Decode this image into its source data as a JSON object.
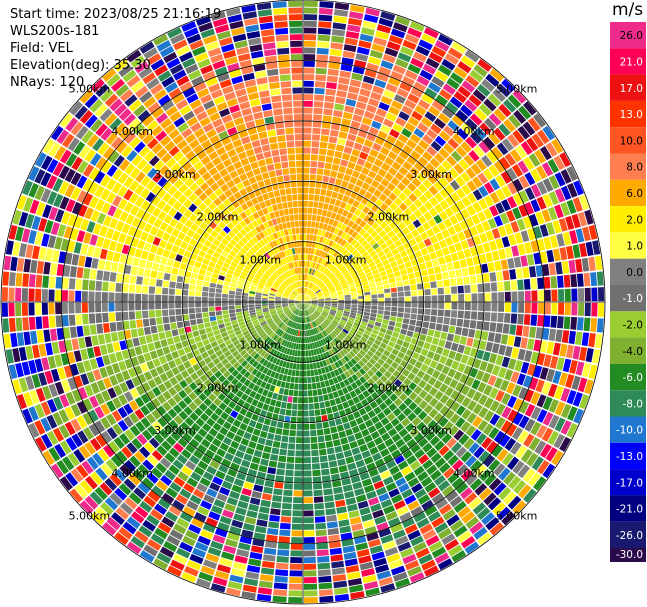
{
  "header": {
    "start_time": "Start time: 2023/08/25 21:16:19",
    "station": "WLS200s-181",
    "field": "Field: VEL",
    "elevation": "Elevation(deg): 35.30",
    "nrays": "NRays: 120"
  },
  "colorbar": {
    "unit": "m/s",
    "ticks": [
      "26.0",
      "21.0",
      "17.0",
      "13.0",
      "10.0",
      "8.0",
      "6.0",
      "2.0",
      "1.0",
      "0.0",
      "-1.0",
      "-2.0",
      "-4.0",
      "-6.0",
      "-8.0",
      "-10.0",
      "-13.0",
      "-17.0",
      "-21.0",
      "-26.0",
      "-30.0"
    ],
    "colors": [
      "#ee2a8a",
      "#ff0055",
      "#ee1111",
      "#ff3300",
      "#ff5522",
      "#ff7f50",
      "#ffaa00",
      "#ffee00",
      "#ffff44",
      "#808080",
      "#707070",
      "#9acd32",
      "#7fb030",
      "#228b22",
      "#2e8b57",
      "#1f77d0",
      "#0000ff",
      "#0000cd",
      "#000080",
      "#191970",
      "#2a0a4a"
    ]
  },
  "chart_data": {
    "type": "ppi",
    "field": "VEL",
    "nrays": 120,
    "range_rings_km": [
      1.0,
      2.0,
      3.0,
      4.0,
      5.0
    ],
    "ring_labels": [
      "1.00km",
      "2.00km",
      "3.00km",
      "4.00km",
      "5.00km"
    ],
    "velocity_by_bearing": [
      {
        "bearing": "north",
        "value": 10.0
      },
      {
        "bearing": "south",
        "value": -8.0
      },
      {
        "bearing": "east",
        "value": 1.0
      },
      {
        "bearing": "west",
        "value": 0.0
      }
    ]
  }
}
